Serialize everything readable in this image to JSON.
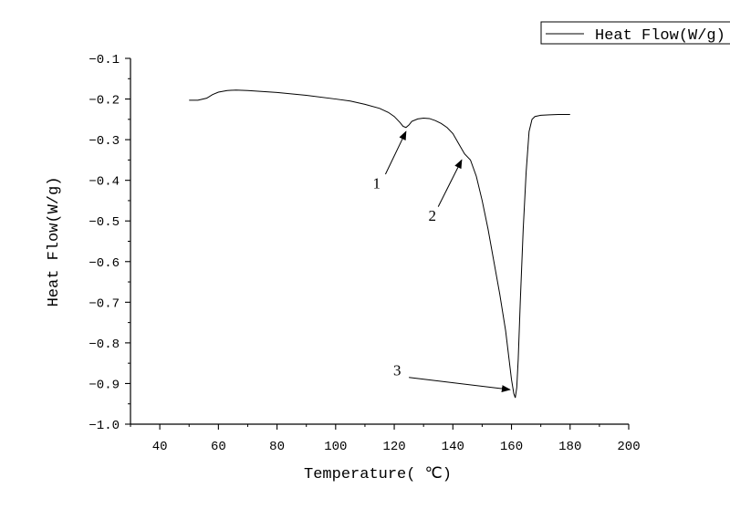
{
  "chart_data": {
    "type": "line",
    "xlabel": "Temperature( ℃)",
    "ylabel": "Heat Flow(W/g)",
    "xlim": [
      30,
      200
    ],
    "ylim": [
      -1.0,
      -0.1
    ],
    "x_ticks": [
      40,
      60,
      80,
      100,
      120,
      140,
      160,
      180,
      200
    ],
    "y_ticks": [
      -0.1,
      -0.2,
      -0.3,
      -0.4,
      -0.5,
      -0.6,
      -0.7,
      -0.8,
      -0.9,
      -1.0
    ],
    "x_tick_labels": [
      "40",
      "60",
      "80",
      "100",
      "120",
      "140",
      "160",
      "180",
      "200"
    ],
    "y_tick_labels": [
      "−0.1",
      "−0.2",
      "−0.3",
      "−0.4",
      "−0.5",
      "−0.6",
      "−0.7",
      "−0.8",
      "−0.9",
      "−1.0"
    ],
    "grid": false,
    "legend_position": "top-right",
    "line_color": "#000000",
    "series": [
      {
        "name": "Heat Flow(W/g)",
        "x": [
          50,
          53,
          56,
          58,
          60,
          63,
          66,
          70,
          80,
          90,
          100,
          105,
          110,
          115,
          118,
          120,
          122,
          123,
          124,
          125,
          126,
          128,
          130,
          132,
          134,
          136,
          138,
          140,
          142,
          144,
          146,
          148,
          150,
          152,
          154,
          156,
          158,
          159,
          160,
          160.8,
          161.3,
          161.8,
          162.3,
          163,
          164,
          165,
          166,
          167,
          168,
          170,
          173,
          176,
          180
        ],
        "y": [
          -0.203,
          -0.203,
          -0.198,
          -0.189,
          -0.183,
          -0.179,
          -0.178,
          -0.179,
          -0.184,
          -0.191,
          -0.2,
          -0.205,
          -0.213,
          -0.223,
          -0.233,
          -0.243,
          -0.258,
          -0.267,
          -0.27,
          -0.264,
          -0.255,
          -0.249,
          -0.247,
          -0.248,
          -0.253,
          -0.26,
          -0.27,
          -0.285,
          -0.31,
          -0.335,
          -0.35,
          -0.39,
          -0.45,
          -0.52,
          -0.6,
          -0.68,
          -0.77,
          -0.83,
          -0.89,
          -0.925,
          -0.935,
          -0.91,
          -0.84,
          -0.7,
          -0.52,
          -0.38,
          -0.28,
          -0.25,
          -0.243,
          -0.24,
          -0.239,
          -0.238,
          -0.238
        ]
      }
    ],
    "annotations": [
      {
        "label": "1",
        "x": 114,
        "y": -0.42,
        "arrow_from": [
          117,
          -0.385
        ],
        "arrow_to": [
          124,
          -0.28
        ]
      },
      {
        "label": "2",
        "x": 133,
        "y": -0.5,
        "arrow_from": [
          135,
          -0.465
        ],
        "arrow_to": [
          143,
          -0.35
        ]
      },
      {
        "label": "3",
        "x": 121,
        "y": -0.88,
        "arrow_from": [
          125,
          -0.885
        ],
        "arrow_to": [
          159.5,
          -0.915
        ]
      }
    ]
  }
}
